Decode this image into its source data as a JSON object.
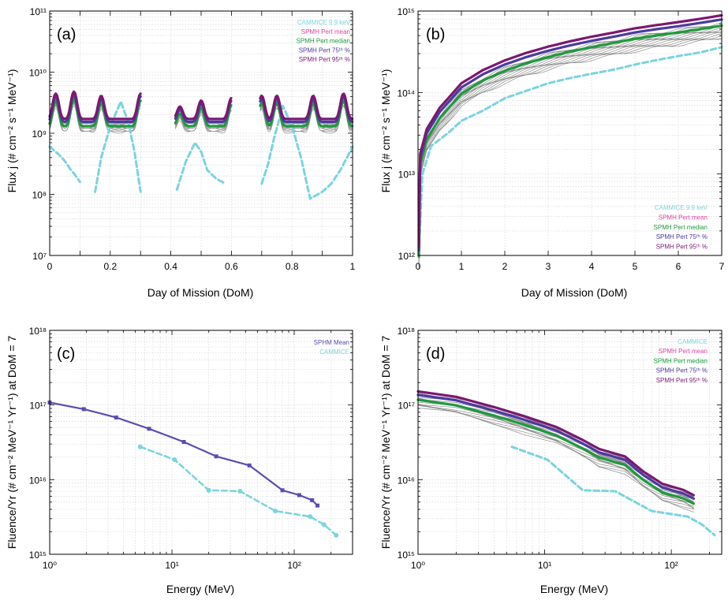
{
  "figure": {
    "labels": {
      "ax1_xlabel": "Day of Mission (DoM)",
      "ax1_ylabel": "Flux j (# cm⁻² s⁻¹ MeV⁻¹)",
      "ax2_xlabel": "Energy (MeV)",
      "ax2_ylabel": "Fluence/Yr (# cm⁻² MeV⁻¹ Yr⁻¹) at DoM = 7"
    },
    "colors": {
      "cammice": "#79d4df",
      "spmh_mean": "#e040a8",
      "pert_mean": "#8e1a6e",
      "pert_median": "#1e9a3c",
      "pert_75": "#4b3aa0",
      "pert_95": "#7c1870",
      "perturbed": "#8c8c8c",
      "spmh_mean_c": "#5a4db0"
    }
  },
  "chart_data": [
    {
      "panel": "(a)",
      "type": "line",
      "xlabel": "Day of Mission (DoM)",
      "ylabel": "Flux j (# cm⁻² s⁻¹ MeV⁻¹)",
      "xlim": [
        0,
        1
      ],
      "ylim": [
        10000000.0,
        100000000000.0
      ],
      "yscale": "log",
      "x_ticks": [
        "0",
        "0.2",
        "0.4",
        "0.6",
        "0.8",
        "1"
      ],
      "y_ticks": [
        "10⁷",
        "10⁸",
        "10⁹",
        "10¹⁰",
        "10¹¹"
      ],
      "legend": [
        "CAMMICE 9.9 keV",
        "SPMH Pert mean",
        "SPMH Pert median",
        "SPMH Pert 75ᵗʰ %",
        "SPMH Pert 95ᵗʰ %"
      ],
      "legend_position": "top-right",
      "segments": [
        [
          0.0,
          0.3
        ],
        [
          0.415,
          0.6
        ],
        [
          0.695,
          1.0
        ]
      ],
      "cammice_segments": [
        [
          [
            0.0,
            600000000.0
          ],
          [
            0.03,
            450000000.0
          ],
          [
            0.05,
            350000000.0
          ],
          [
            0.07,
            250000000.0
          ],
          [
            0.08,
            220000000.0
          ],
          [
            0.1,
            160000000.0
          ]
        ],
        [
          [
            0.15,
            110000000.0
          ],
          [
            0.17,
            400000000.0
          ],
          [
            0.2,
            1300000000.0
          ],
          [
            0.235,
            3300000000.0
          ],
          [
            0.26,
            1500000000.0
          ],
          [
            0.28,
            500000000.0
          ],
          [
            0.3,
            110000000.0
          ]
        ],
        [
          [
            0.42,
            120000000.0
          ],
          [
            0.45,
            350000000.0
          ],
          [
            0.48,
            700000000.0
          ],
          [
            0.5,
            500000000.0
          ],
          [
            0.52,
            250000000.0
          ],
          [
            0.55,
            180000000.0
          ],
          [
            0.58,
            150000000.0
          ]
        ],
        [
          [
            0.7,
            150000000.0
          ],
          [
            0.72,
            300000000.0
          ],
          [
            0.74,
            800000000.0
          ],
          [
            0.77,
            2800000000.0
          ],
          [
            0.8,
            1300000000.0
          ],
          [
            0.83,
            400000000.0
          ],
          [
            0.86,
            85000000.0
          ],
          [
            0.9,
            110000000.0
          ],
          [
            0.93,
            150000000.0
          ],
          [
            0.96,
            250000000.0
          ],
          [
            1.0,
            600000000.0
          ]
        ]
      ],
      "pert_base": 1450000000.0,
      "pert_peaks_x": [
        0.02,
        0.08,
        0.17,
        0.3,
        0.43,
        0.5,
        0.6,
        0.7,
        0.75,
        0.87,
        0.97
      ],
      "pert_peak_factor": [
        2.6,
        2.8,
        2.4,
        2.6,
        1.6,
        2.0,
        2.2,
        2.4,
        2.4,
        2.4,
        2.6
      ],
      "series_scale": {
        "pert_95": 1.18,
        "pert_75": 1.06,
        "pert_mean": 1.0,
        "pert_median": 0.9
      }
    },
    {
      "panel": "(b)",
      "type": "line",
      "xlabel": "Day of Mission (DoM)",
      "ylabel": "Flux j (# cm⁻² s⁻¹ MeV⁻¹)",
      "xlim": [
        0,
        7
      ],
      "ylim": [
        1000000000000.0,
        1000000000000000.0
      ],
      "yscale": "log",
      "x_ticks": [
        "0",
        "1",
        "2",
        "3",
        "4",
        "5",
        "6",
        "7"
      ],
      "y_ticks": [
        "10¹²",
        "10¹³",
        "10¹⁴",
        "10¹⁵"
      ],
      "legend": [
        "CAMMICE 9.9 keV",
        "SPMH Pert mean",
        "SPMH Pert median",
        "SPMH Pert 75ᵗʰ %",
        "SPMH Pert 95ᵗʰ %"
      ],
      "legend_position": "bottom-right",
      "cammice": [
        [
          0.02,
          1100000000000.0
        ],
        [
          0.1,
          10000000000000.0
        ],
        [
          0.3,
          22000000000000.0
        ],
        [
          0.7,
          32000000000000.0
        ],
        [
          1.0,
          45000000000000.0
        ],
        [
          1.5,
          60000000000000.0
        ],
        [
          2.0,
          85000000000000.0
        ],
        [
          2.5,
          105000000000000.0
        ],
        [
          3.0,
          130000000000000.0
        ],
        [
          3.5,
          150000000000000.0
        ],
        [
          4.0,
          170000000000000.0
        ],
        [
          4.5,
          190000000000000.0
        ],
        [
          5.0,
          220000000000000.0
        ],
        [
          5.5,
          250000000000000.0
        ],
        [
          6.0,
          280000000000000.0
        ],
        [
          6.5,
          310000000000000.0
        ],
        [
          7.0,
          360000000000000.0
        ]
      ],
      "pert_mean": [
        [
          0.02,
          1100000000000.0
        ],
        [
          0.05,
          15000000000000.0
        ],
        [
          0.2,
          30000000000000.0
        ],
        [
          0.5,
          55000000000000.0
        ],
        [
          1.0,
          110000000000000.0
        ],
        [
          1.5,
          160000000000000.0
        ],
        [
          2.0,
          210000000000000.0
        ],
        [
          2.5,
          260000000000000.0
        ],
        [
          3.0,
          310000000000000.0
        ],
        [
          3.5,
          360000000000000.0
        ],
        [
          4.0,
          410000000000000.0
        ],
        [
          4.5,
          460000000000000.0
        ],
        [
          5.0,
          520000000000000.0
        ],
        [
          5.5,
          570000000000000.0
        ],
        [
          6.0,
          620000000000000.0
        ],
        [
          6.5,
          680000000000000.0
        ],
        [
          7.0,
          750000000000000.0
        ]
      ],
      "series_scale": {
        "pert_95": 1.18,
        "pert_75": 1.05,
        "pert_mean": 1.0,
        "pert_median": 0.88
      }
    },
    {
      "panel": "(c)",
      "type": "line",
      "xlabel": "Energy (MeV)",
      "ylabel": "Fluence/Yr (# cm⁻² MeV⁻¹ Yr⁻¹) at DoM = 7",
      "xlim": [
        1,
        300
      ],
      "ylim": [
        1000000000000000.0,
        1e+18
      ],
      "xscale": "log",
      "yscale": "log",
      "x_ticks": [
        "10⁰",
        "10¹",
        "10²"
      ],
      "y_ticks": [
        "10¹⁵",
        "10¹⁶",
        "10¹⁷",
        "10¹⁸"
      ],
      "legend": [
        "SPHM Mean",
        "CAMMICE"
      ],
      "legend_position": "top-right",
      "spmh_mean": [
        [
          1.0,
          1.08e+17
        ],
        [
          1.9,
          8.8e+16
        ],
        [
          3.5,
          6.8e+16
        ],
        [
          6.5,
          4.8e+16
        ],
        [
          12.5,
          3.2e+16
        ],
        [
          23,
          2.05e+16
        ],
        [
          43,
          1.55e+16
        ],
        [
          80,
          7200000000000000.0
        ],
        [
          110,
          6200000000000000.0
        ],
        [
          140,
          5300000000000000.0
        ],
        [
          155,
          4500000000000000.0
        ]
      ],
      "cammice": [
        [
          5.5,
          2.75e+16
        ],
        [
          10.5,
          1.85e+16
        ],
        [
          20,
          7200000000000000.0
        ],
        [
          36,
          7000000000000000.0
        ],
        [
          70,
          3800000000000000.0
        ],
        [
          135,
          3200000000000000.0
        ],
        [
          175,
          2500000000000000.0
        ],
        [
          220,
          1800000000000000.0
        ]
      ]
    },
    {
      "panel": "(d)",
      "type": "line",
      "xlabel": "Energy (MeV)",
      "ylabel": "Fluence/Yr (# cm⁻² MeV⁻¹ Yr⁻¹) at DoM = 7",
      "xlim": [
        1,
        250
      ],
      "ylim": [
        1000000000000000.0,
        1e+18
      ],
      "xscale": "log",
      "yscale": "log",
      "x_ticks": [
        "10⁰",
        "10¹",
        "10²"
      ],
      "y_ticks": [
        "10¹⁵",
        "10¹⁶",
        "10¹⁷",
        "10¹⁸"
      ],
      "legend": [
        "CAMMICE",
        "SPMH Pert mean",
        "SPMH Pert median",
        "SPMH Pert 75ᵗʰ %",
        "SPMH Pert 95ᵗʰ %"
      ],
      "legend_position": "top-right",
      "pert_mean": [
        [
          1.0,
          1.3e+17
        ],
        [
          2.0,
          1.1e+17
        ],
        [
          4.0,
          8e+16
        ],
        [
          7.0,
          6e+16
        ],
        [
          12.5,
          4.3e+16
        ],
        [
          20,
          2.9e+16
        ],
        [
          27,
          2.2e+16
        ],
        [
          43,
          1.75e+16
        ],
        [
          60,
          1.1e+16
        ],
        [
          85,
          7500000000000000.0
        ],
        [
          125,
          6200000000000000.0
        ],
        [
          150,
          5300000000000000.0
        ]
      ],
      "cammice": [
        [
          5.5,
          2.75e+16
        ],
        [
          10.5,
          1.85e+16
        ],
        [
          20,
          7200000000000000.0
        ],
        [
          36,
          7000000000000000.0
        ],
        [
          70,
          3800000000000000.0
        ],
        [
          135,
          3200000000000000.0
        ],
        [
          175,
          2500000000000000.0
        ],
        [
          220,
          1800000000000000.0
        ]
      ],
      "series_scale": {
        "pert_95": 1.17,
        "pert_75": 1.05,
        "pert_mean": 1.0,
        "pert_median": 0.9
      }
    }
  ]
}
